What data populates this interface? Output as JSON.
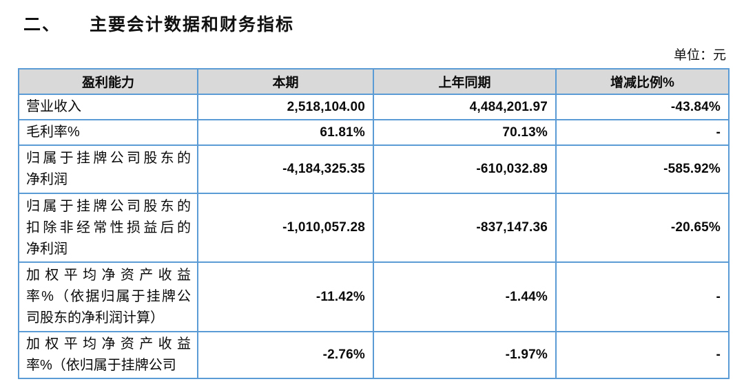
{
  "page": {
    "section_number": "二、",
    "title": "主要会计数据和财务指标",
    "unit_label": "单位：元"
  },
  "table": {
    "headers": [
      "盈利能力",
      "本期",
      "上年同期",
      "增减比例%"
    ],
    "rows": [
      {
        "label_lines": [
          "营业收入"
        ],
        "current": "2,518,104.00",
        "prior": "4,484,201.97",
        "change": "-43.84%"
      },
      {
        "label_lines": [
          "毛利率%"
        ],
        "current": "61.81%",
        "prior": "70.13%",
        "change": "-"
      },
      {
        "label_lines": [
          "归属于挂牌公司股东的",
          "净利润"
        ],
        "current": "-4,184,325.35",
        "prior": "-610,032.89",
        "change": "-585.92%"
      },
      {
        "label_lines": [
          "归属于挂牌公司股东的",
          "扣除非经常性损益后的",
          "净利润"
        ],
        "current": "-1,010,057.28",
        "prior": "-837,147.36",
        "change": "-20.65%"
      },
      {
        "label_lines": [
          "加权平均净资产收益",
          "率%（依据归属于挂牌公",
          "司股东的净利润计算）"
        ],
        "current": "-11.42%",
        "prior": "-1.44%",
        "change": "-"
      },
      {
        "label_lines": [
          "加权平均净资产收益",
          "率%（依归属于挂牌公司"
        ],
        "current": "-2.76%",
        "prior": "-1.97%",
        "change": "-"
      }
    ]
  },
  "colors": {
    "table_border": "#5B9BD5",
    "header_background": "#D9D9D9",
    "text": "#151515",
    "page_background": "#FFFFFF"
  }
}
